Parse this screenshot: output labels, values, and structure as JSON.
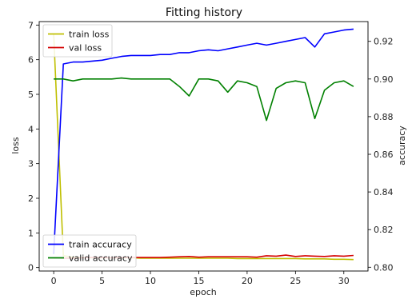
{
  "chart_data": {
    "type": "line",
    "title": "Fitting history",
    "xlabel": "epoch",
    "ylabel_left": "loss",
    "ylabel_right": "accuracy",
    "xlim": [
      -1.5,
      32.5
    ],
    "ylim_left": [
      -0.1,
      7.1
    ],
    "ylim_right": [
      0.798,
      0.9305
    ],
    "xticks": [
      0,
      5,
      10,
      15,
      20,
      25,
      30
    ],
    "yticks_left": [
      0,
      1,
      2,
      3,
      4,
      5,
      6,
      7
    ],
    "yticks_right": [
      0.8,
      0.82,
      0.84,
      0.86,
      0.88,
      0.9,
      0.92
    ],
    "ytick_labels_right": [
      "0.80",
      "0.82",
      "0.84",
      "0.86",
      "0.88",
      "0.90",
      "0.92"
    ],
    "grid": false,
    "legends": [
      {
        "placement": "upper-left",
        "entries": [
          "train loss",
          "val loss"
        ]
      },
      {
        "placement": "lower-left",
        "entries": [
          "train accuracy",
          "valid accuracy"
        ]
      }
    ],
    "x": [
      0,
      1,
      2,
      3,
      4,
      5,
      6,
      7,
      8,
      9,
      10,
      11,
      12,
      13,
      14,
      15,
      16,
      17,
      18,
      19,
      20,
      21,
      22,
      23,
      24,
      25,
      26,
      27,
      28,
      29,
      30,
      31
    ],
    "series": [
      {
        "name": "train loss",
        "axis": "left",
        "color": "#bfbf00",
        "values": [
          6.75,
          0.34,
          0.3,
          0.29,
          0.28,
          0.28,
          0.28,
          0.28,
          0.28,
          0.27,
          0.27,
          0.27,
          0.27,
          0.27,
          0.27,
          0.27,
          0.27,
          0.27,
          0.27,
          0.26,
          0.26,
          0.26,
          0.26,
          0.26,
          0.26,
          0.26,
          0.25,
          0.25,
          0.25,
          0.24,
          0.24,
          0.23
        ]
      },
      {
        "name": "val loss",
        "axis": "left",
        "color": "#d40000",
        "values": [
          0.28,
          0.27,
          0.27,
          0.28,
          0.29,
          0.29,
          0.28,
          0.29,
          0.29,
          0.29,
          0.29,
          0.29,
          0.3,
          0.31,
          0.32,
          0.3,
          0.31,
          0.31,
          0.31,
          0.31,
          0.31,
          0.3,
          0.34,
          0.33,
          0.36,
          0.32,
          0.34,
          0.33,
          0.32,
          0.34,
          0.33,
          0.35
        ]
      },
      {
        "name": "train accuracy",
        "axis": "right",
        "color": "#0000ff",
        "values": [
          0.807,
          0.908,
          0.909,
          0.909,
          0.9095,
          0.91,
          0.911,
          0.912,
          0.9125,
          0.9125,
          0.9125,
          0.913,
          0.913,
          0.914,
          0.914,
          0.915,
          0.9155,
          0.915,
          0.916,
          0.917,
          0.918,
          0.919,
          0.918,
          0.919,
          0.92,
          0.921,
          0.922,
          0.917,
          0.924,
          0.925,
          0.926,
          0.9265
        ]
      },
      {
        "name": "valid accuracy",
        "axis": "right",
        "color": "#008000",
        "values": [
          0.9,
          0.9,
          0.899,
          0.9,
          0.9,
          0.9,
          0.9,
          0.9005,
          0.9,
          0.9,
          0.9,
          0.9,
          0.9,
          0.896,
          0.891,
          0.9,
          0.9,
          0.899,
          0.893,
          0.899,
          0.898,
          0.896,
          0.878,
          0.895,
          0.898,
          0.899,
          0.898,
          0.879,
          0.894,
          0.898,
          0.899,
          0.896
        ]
      }
    ]
  }
}
